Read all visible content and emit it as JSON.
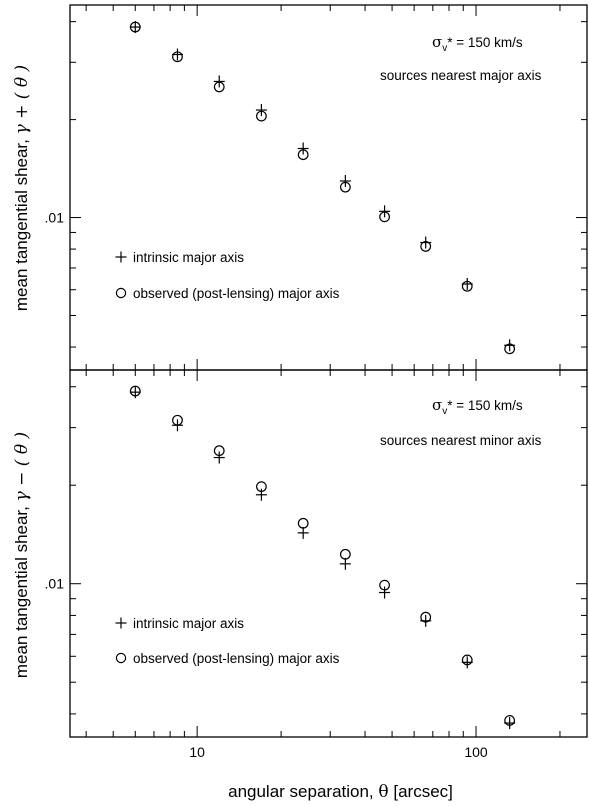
{
  "chart_data": [
    {
      "type": "scatter",
      "xscale": "log",
      "yscale": "log",
      "xlim": [
        3.5,
        250
      ],
      "ylim": [
        0.0034,
        0.045
      ],
      "y_tick_labels": [
        {
          "value": 0.01,
          "label": ".01"
        }
      ],
      "ylabel_prefix": "mean tangential shear, ",
      "ylabel_symbol": "γ + ( θ )",
      "annotations": {
        "sigma_symbol": "σ",
        "sigma_sub": "v",
        "sigma_value": "* = 150 km/s",
        "subset": "sources nearest major axis"
      },
      "series": [
        {
          "name": "intrinsic major axis",
          "marker": "plus",
          "x": [
            6,
            8.5,
            12,
            17,
            24,
            34,
            47,
            66,
            93,
            132
          ],
          "y": [
            0.0385,
            0.0317,
            0.0262,
            0.0214,
            0.0163,
            0.01295,
            0.01045,
            0.00838,
            0.00625,
            0.00405
          ]
        },
        {
          "name": "observed (post-lensing) major axis",
          "marker": "circle",
          "x": [
            6,
            8.5,
            12,
            17,
            24,
            34,
            47,
            66,
            93,
            132
          ],
          "y": [
            0.0385,
            0.0312,
            0.0252,
            0.0205,
            0.0156,
            0.0124,
            0.01005,
            0.00815,
            0.00615,
            0.00395
          ]
        }
      ]
    },
    {
      "type": "scatter",
      "xscale": "log",
      "yscale": "log",
      "xlim": [
        3.5,
        250
      ],
      "ylim": [
        0.0034,
        0.045
      ],
      "x_ticks": [
        10,
        100
      ],
      "y_tick_labels": [
        {
          "value": 0.01,
          "label": ".01"
        }
      ],
      "xlabel_prefix": "angular separation, ",
      "xlabel_symbol": "θ",
      "xlabel_suffix": " [arcsec]",
      "ylabel_prefix": "mean tangential shear, ",
      "ylabel_symbol": "γ − ( θ )",
      "annotations": {
        "sigma_symbol": "σ",
        "sigma_sub": "v",
        "sigma_value": "* = 150 km/s",
        "subset": "sources nearest minor axis"
      },
      "series": [
        {
          "name": "intrinsic major axis",
          "marker": "plus",
          "x": [
            6,
            8.5,
            12,
            17,
            24,
            34,
            47,
            66,
            93,
            132
          ],
          "y": [
            0.0385,
            0.0305,
            0.0243,
            0.0187,
            0.0143,
            0.0115,
            0.0094,
            0.0077,
            0.00575,
            0.00375
          ]
        },
        {
          "name": "observed (post-lensing) major axis",
          "marker": "circle",
          "x": [
            6,
            8.5,
            12,
            17,
            24,
            34,
            47,
            66,
            93,
            132
          ],
          "y": [
            0.0388,
            0.0316,
            0.0255,
            0.0198,
            0.0153,
            0.0123,
            0.0099,
            0.0079,
            0.00585,
            0.00382
          ]
        }
      ]
    }
  ]
}
